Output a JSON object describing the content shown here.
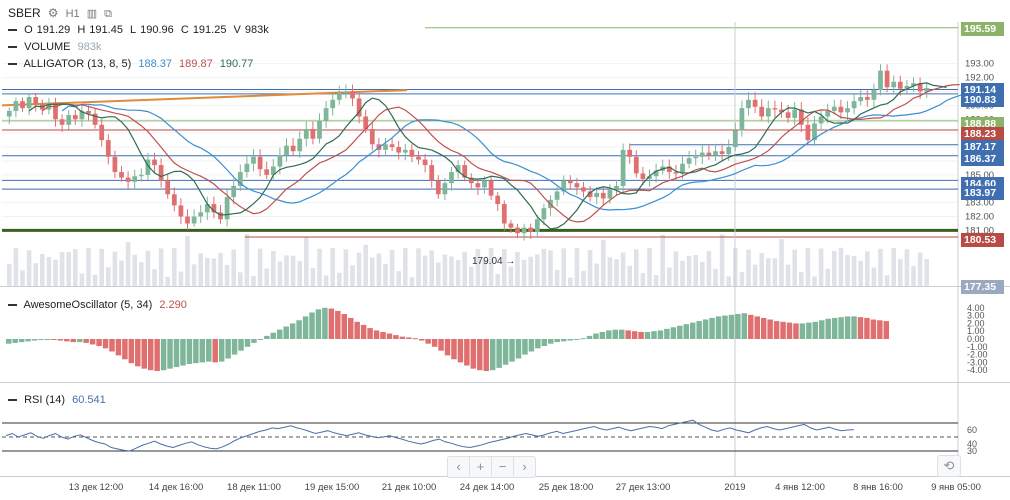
{
  "header": {
    "symbol": "SBER",
    "interval": "H1",
    "ohlc": {
      "o_label": "O",
      "o": "191.29",
      "h_label": "H",
      "h": "191.45",
      "l_label": "L",
      "l": "190.96",
      "c_label": "C",
      "c": "191.25",
      "v_label": "V",
      "v": "983k"
    }
  },
  "indicators": {
    "volume": {
      "name": "VOLUME",
      "value": "983k"
    },
    "alligator": {
      "name": "ALLIGATOR (13, 8, 5)",
      "v1": "188.37",
      "v2": "189.87",
      "v3": "190.77"
    },
    "ao": {
      "name": "AwesomeOscillator (5, 34)",
      "value": "2.290"
    },
    "rsi": {
      "name": "RSI (14)",
      "value": "60.541"
    }
  },
  "colors": {
    "up": "#7fb69a",
    "down": "#e07070",
    "jaw": "#3a8fd0",
    "teeth": "#c0504d",
    "lips": "#2f6b4f",
    "volume": "#dfe3e8",
    "trend": "#e08a3a",
    "rsi_line": "#4a6fa5"
  },
  "price_labels": [
    {
      "value": "195.59",
      "color": "#8db36a"
    },
    {
      "value": "191.14",
      "color": "#3f6fb0"
    },
    {
      "value": "190.83",
      "color": "#3f6fb0"
    },
    {
      "value": "188.88",
      "color": "#8db36a"
    },
    {
      "value": "188.23",
      "color": "#b84b44"
    },
    {
      "value": "187.17",
      "color": "#3f6fb0"
    },
    {
      "value": "186.37",
      "color": "#3f6fb0"
    },
    {
      "value": "184.60",
      "color": "#3f6fb0"
    },
    {
      "value": "183.97",
      "color": "#3f6fb0"
    },
    {
      "value": "180.53",
      "color": "#b84b44"
    },
    {
      "value": "177.35",
      "color": "#9aa9c0"
    }
  ],
  "annotation": "179.04 →",
  "toolbar": {
    "back": "‹",
    "zoom_in": "+",
    "zoom_out": "−",
    "forward": "›",
    "reset": "⟲"
  },
  "chart_data": [
    {
      "type": "candlestick",
      "title": "SBER",
      "x_ticks": [
        "13 дек 12:00",
        "14 дек 16:00",
        "18 дек 11:00",
        "19 дек 15:00",
        "21 дек 10:00",
        "24 дек 14:00",
        "25 дек 18:00",
        "27 дек 13:00",
        "2019",
        "4 янв 12:00",
        "8 янв 16:00",
        "9 янв 05:00"
      ],
      "y_ticks": [
        "181.00",
        "182.00",
        "183.00",
        "184.00",
        "185.00",
        "186.00",
        "187.00",
        "188.00",
        "189.00",
        "190.00",
        "191.00",
        "192.00",
        "193.00"
      ],
      "ylim": [
        177,
        196
      ],
      "close": [
        189.6,
        190.3,
        189.8,
        190.6,
        190.1,
        189.7,
        190.2,
        189.0,
        188.6,
        189.3,
        189.0,
        189.6,
        189.4,
        188.6,
        187.5,
        186.3,
        185.2,
        184.8,
        184.5,
        184.9,
        185.0,
        186.1,
        185.7,
        184.6,
        183.6,
        182.8,
        182.0,
        181.5,
        182.0,
        182.3,
        182.9,
        182.3,
        181.8,
        183.4,
        184.2,
        185.2,
        185.8,
        186.3,
        185.4,
        185.0,
        185.6,
        186.4,
        187.1,
        186.7,
        187.6,
        188.3,
        187.6,
        188.9,
        189.8,
        190.4,
        190.9,
        191.0,
        190.5,
        189.2,
        188.3,
        187.2,
        186.8,
        187.2,
        187.0,
        186.6,
        186.8,
        186.3,
        186.1,
        185.7,
        184.6,
        183.6,
        184.4,
        185.2,
        185.7,
        184.8,
        184.4,
        184.1,
        184.6,
        183.5,
        182.9,
        181.5,
        181.2,
        180.8,
        181.2,
        180.9,
        181.8,
        182.6,
        183.2,
        183.8,
        184.6,
        184.4,
        184.1,
        183.8,
        183.4,
        183.7,
        183.3,
        183.9,
        184.2,
        186.8,
        186.3,
        185.1,
        184.7,
        184.9,
        185.3,
        185.6,
        185.2,
        185.1,
        185.8,
        186.2,
        186.3,
        186.6,
        186.4,
        186.7,
        186.5,
        187.0,
        188.2,
        189.8,
        190.4,
        189.9,
        189.2,
        189.8,
        189.7,
        189.5,
        189.1,
        189.7,
        188.6,
        187.5,
        188.7,
        189.2,
        189.6,
        189.9,
        189.5,
        189.8,
        190.3,
        190.6,
        190.4,
        191.1,
        192.5,
        191.3,
        191.7,
        191.2,
        191.4,
        191.6,
        191.0,
        191.25
      ]
    },
    {
      "type": "bar",
      "title": "AwesomeOscillator (5, 34)",
      "y_ticks": [
        "4.00",
        "3.00",
        "2.00",
        "1.00",
        "0.00",
        "-1.00",
        "-2.00",
        "-3.00",
        "-4.00"
      ],
      "ylim": [
        -5,
        5
      ],
      "values": [
        -0.6,
        -0.5,
        -0.4,
        -0.3,
        -0.2,
        -0.1,
        0.0,
        -0.1,
        -0.2,
        -0.3,
        -0.4,
        -0.4,
        -0.5,
        -0.7,
        -0.9,
        -1.2,
        -1.6,
        -2.1,
        -2.6,
        -3.1,
        -3.5,
        -3.8,
        -4.0,
        -4.1,
        -4.0,
        -3.8,
        -3.6,
        -3.4,
        -3.2,
        -3.1,
        -3.0,
        -2.9,
        -3.0,
        -2.9,
        -2.5,
        -2.0,
        -1.5,
        -1.0,
        -0.5,
        0.0,
        0.4,
        0.8,
        1.2,
        1.6,
        2.0,
        2.4,
        2.9,
        3.4,
        3.8,
        4.0,
        3.9,
        3.6,
        3.2,
        2.7,
        2.2,
        1.8,
        1.4,
        1.1,
        0.9,
        0.7,
        0.5,
        0.3,
        0.2,
        0.1,
        -0.2,
        -0.6,
        -1.0,
        -1.5,
        -2.1,
        -2.6,
        -3.0,
        -3.4,
        -3.8,
        -4.0,
        -4.1,
        -4.0,
        -3.7,
        -3.3,
        -2.9,
        -2.5,
        -2.0,
        -1.6,
        -1.2,
        -0.9,
        -0.6,
        -0.4,
        -0.3,
        -0.2,
        -0.1,
        0.1,
        0.4,
        0.7,
        0.9,
        1.1,
        1.2,
        1.2,
        1.1,
        1.0,
        0.9,
        0.9,
        1.0,
        1.1,
        1.3,
        1.5,
        1.7,
        1.9,
        2.1,
        2.3,
        2.5,
        2.7,
        2.9,
        3.0,
        3.1,
        3.2,
        3.3,
        3.1,
        2.9,
        2.7,
        2.5,
        2.3,
        2.2,
        2.1,
        2.0,
        2.0,
        2.1,
        2.2,
        2.4,
        2.6,
        2.7,
        2.8,
        2.9,
        2.9,
        2.8,
        2.7,
        2.5,
        2.4,
        2.3
      ]
    },
    {
      "type": "line",
      "title": "RSI (14)",
      "y_ticks": [
        "60",
        "40",
        "30"
      ],
      "ylim": [
        0,
        100
      ],
      "levels": [
        70,
        50,
        30
      ],
      "values": [
        52,
        55,
        50,
        53,
        56,
        51,
        48,
        52,
        55,
        50,
        47,
        51,
        53,
        49,
        45,
        42,
        40,
        35,
        33,
        31,
        30,
        34,
        38,
        41,
        44,
        40,
        37,
        35,
        38,
        41,
        43,
        39,
        36,
        34,
        33,
        36,
        40,
        45,
        49,
        52,
        55,
        58,
        60,
        63,
        62,
        64,
        66,
        63,
        61,
        58,
        55,
        57,
        59,
        56,
        54,
        52,
        54,
        56,
        53,
        51,
        49,
        50,
        52,
        49,
        47,
        44,
        42,
        40,
        42,
        45,
        47,
        43,
        41,
        38,
        36,
        35,
        37,
        39,
        42,
        44,
        46,
        48,
        51,
        53,
        55,
        53,
        51,
        53,
        56,
        58,
        55,
        57,
        59,
        61,
        63,
        65,
        62,
        60,
        62,
        64,
        61,
        59,
        61,
        63,
        65,
        64,
        62,
        66,
        68,
        70,
        72,
        74,
        68,
        64,
        60,
        58,
        61,
        63,
        60,
        58,
        56,
        60,
        63,
        65,
        62,
        60,
        62,
        64,
        66,
        68,
        63,
        60,
        62,
        64,
        61,
        59,
        60,
        60.5
      ]
    }
  ]
}
